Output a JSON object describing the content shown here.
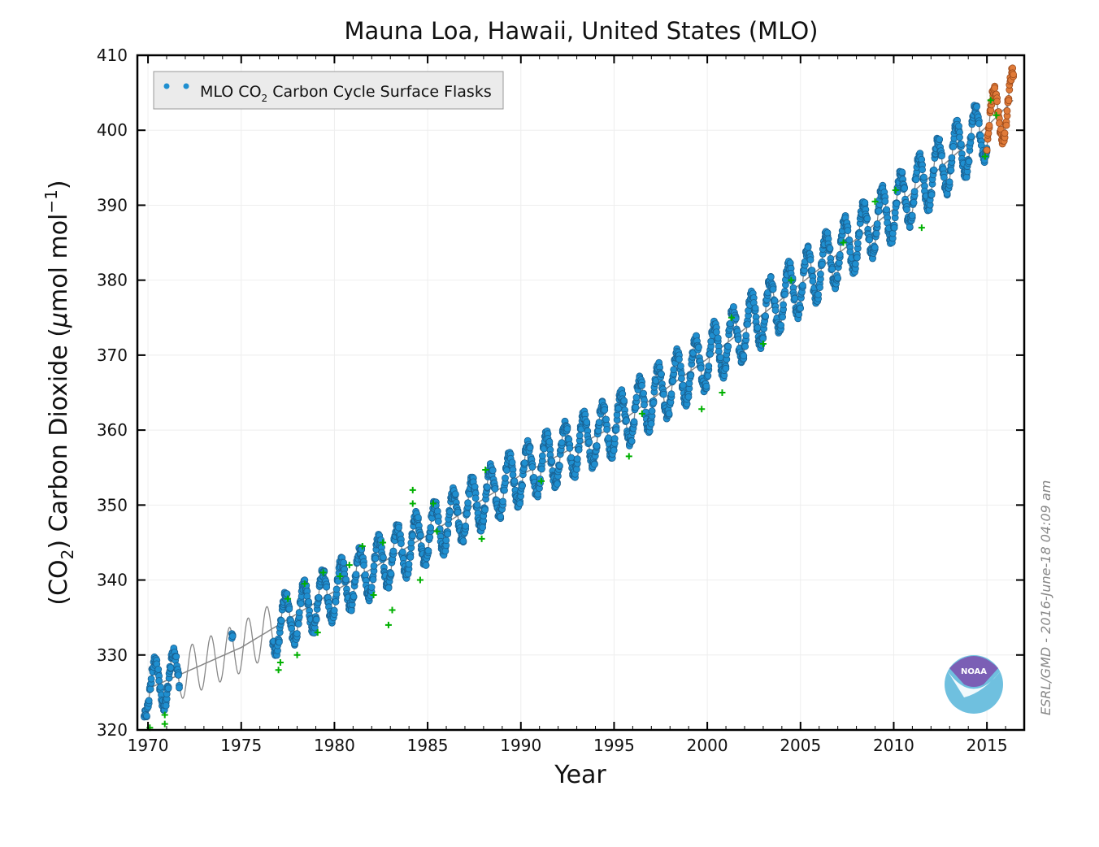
{
  "chart_data": {
    "type": "scatter",
    "title": "Mauna Loa, Hawaii, United States (MLO)",
    "xlabel": "Year",
    "ylabel": "(CO2) Carbon Dioxide (μmol mol⁻¹)",
    "ylabel_parts": {
      "pre": "(CO",
      "sub": "2",
      "mid": ") Carbon Dioxide (",
      "mu": "μ",
      "unit": "mol mol",
      "sup": "−1",
      "post": ")"
    },
    "xlim": [
      1969.43,
      2017.0
    ],
    "ylim": [
      320,
      410
    ],
    "xticks": [
      1970,
      1975,
      1980,
      1985,
      1990,
      1995,
      2000,
      2005,
      2010,
      2015
    ],
    "yticks": [
      320,
      330,
      340,
      350,
      360,
      370,
      380,
      390,
      400,
      410
    ],
    "grid": true,
    "legend": {
      "placement": "top-left",
      "label_pre": "MLO CO",
      "label_sub": "2",
      "label_post": " Carbon Cycle Surface Flasks"
    },
    "trend": {
      "years": [
        1970,
        1975,
        1980,
        1985,
        1990,
        1995,
        2000,
        2005,
        2010,
        2015,
        2016.4
      ],
      "values": [
        325.5,
        331.0,
        338.5,
        346.0,
        354.0,
        360.5,
        369.5,
        379.5,
        389.5,
        400.5,
        404.0
      ]
    },
    "seasonal_amplitude_ppm": 3.3,
    "series": [
      {
        "name": "MLO CO2 Carbon Cycle Surface Flasks",
        "color": "#1f8fd0",
        "edge": "#1a5f8f",
        "ranges": [
          [
            1969.8,
            1971.7
          ],
          [
            1974.5,
            1974.55
          ],
          [
            1976.7,
            2015.0
          ]
        ]
      },
      {
        "color": "#e07b39",
        "edge": "#9a4a1c",
        "ranges": [
          [
            2015.0,
            2016.45
          ]
        ]
      }
    ],
    "outliers": {
      "color": "#00b000",
      "points": [
        [
          1970.1,
          320.3
        ],
        [
          1970.9,
          320.8
        ],
        [
          1970.9,
          322.0
        ],
        [
          1977.0,
          328.0
        ],
        [
          1977.1,
          329.0
        ],
        [
          1977.5,
          337.5
        ],
        [
          1978.0,
          330.0
        ],
        [
          1978.4,
          339.5
        ],
        [
          1979.1,
          333.0
        ],
        [
          1979.4,
          341.0
        ],
        [
          1980.3,
          340.5
        ],
        [
          1980.8,
          342.0
        ],
        [
          1981.5,
          344.5
        ],
        [
          1982.1,
          338.0
        ],
        [
          1982.6,
          345.0
        ],
        [
          1982.9,
          334.0
        ],
        [
          1983.1,
          336.0
        ],
        [
          1984.2,
          352.0
        ],
        [
          1984.2,
          350.2
        ],
        [
          1984.6,
          340.0
        ],
        [
          1985.3,
          350.2
        ],
        [
          1985.5,
          346.5
        ],
        [
          1988.1,
          354.7
        ],
        [
          1987.9,
          345.5
        ],
        [
          1991.1,
          353.2
        ],
        [
          1995.8,
          356.5
        ],
        [
          1996.5,
          362.2
        ],
        [
          1999.7,
          362.8
        ],
        [
          2000.8,
          365.0
        ],
        [
          2001.3,
          375.0
        ],
        [
          2003.0,
          371.5
        ],
        [
          2004.5,
          380.0
        ],
        [
          2007.3,
          385.0
        ],
        [
          2009.0,
          390.5
        ],
        [
          2010.1,
          392.0
        ],
        [
          2011.5,
          387.0
        ],
        [
          2014.9,
          396.5
        ],
        [
          2015.2,
          404.0
        ],
        [
          2015.5,
          402.0
        ]
      ]
    },
    "trend_color": "#888888"
  },
  "timestamp": "ESRL/GMD - 2016-June-18 04:09 am",
  "logo_text": "NOAA"
}
